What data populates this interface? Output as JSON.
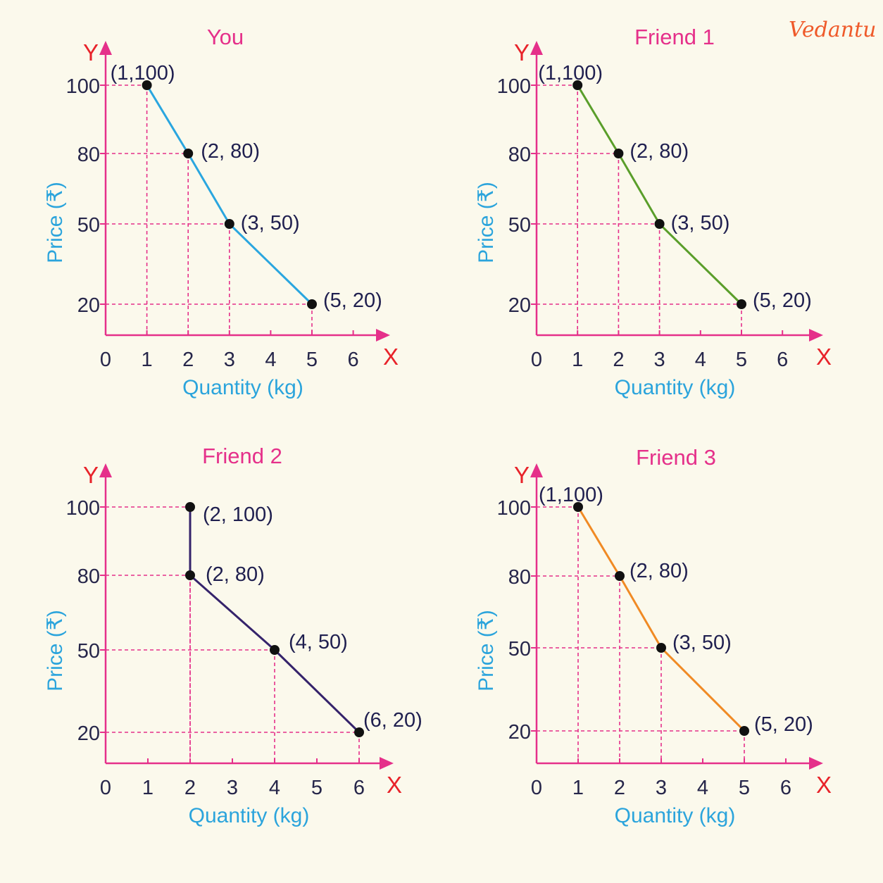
{
  "logo": "Vedantu",
  "chart_data": [
    {
      "type": "line",
      "title": "You",
      "xlabel": "Quantity (kg)",
      "ylabel": "Price (₹)",
      "x_axis_letter": "X",
      "y_axis_letter": "Y",
      "xticks": [
        "0",
        "1",
        "2",
        "3",
        "4",
        "5",
        "6"
      ],
      "yticks": [
        "20",
        "50",
        "80",
        "100"
      ],
      "line_color": "#2aa6df",
      "points": [
        {
          "x": 1,
          "y": 100,
          "label": "(1,100)"
        },
        {
          "x": 2,
          "y": 80,
          "label": "(2, 80)"
        },
        {
          "x": 3,
          "y": 50,
          "label": "(3, 50)"
        },
        {
          "x": 5,
          "y": 20,
          "label": "(5, 20)"
        }
      ]
    },
    {
      "type": "line",
      "title": "Friend 1",
      "xlabel": "Quantity (kg)",
      "ylabel": "Price (₹)",
      "x_axis_letter": "X",
      "y_axis_letter": "Y",
      "xticks": [
        "0",
        "1",
        "2",
        "3",
        "4",
        "5",
        "6"
      ],
      "yticks": [
        "20",
        "50",
        "80",
        "100"
      ],
      "line_color": "#5a9e2a",
      "points": [
        {
          "x": 1,
          "y": 100,
          "label": "(1,100)"
        },
        {
          "x": 2,
          "y": 80,
          "label": "(2, 80)"
        },
        {
          "x": 3,
          "y": 50,
          "label": "(3, 50)"
        },
        {
          "x": 5,
          "y": 20,
          "label": "(5, 20)"
        }
      ]
    },
    {
      "type": "line",
      "title": "Friend 2",
      "xlabel": "Quantity (kg)",
      "ylabel": "Price (₹)",
      "x_axis_letter": "X",
      "y_axis_letter": "Y",
      "xticks": [
        "0",
        "1",
        "2",
        "3",
        "4",
        "5",
        "6"
      ],
      "yticks": [
        "20",
        "50",
        "80",
        "100"
      ],
      "line_color": "#35236b",
      "points": [
        {
          "x": 2,
          "y": 100,
          "label": "(2, 100)"
        },
        {
          "x": 2,
          "y": 80,
          "label": "(2, 80)"
        },
        {
          "x": 4,
          "y": 50,
          "label": "(4, 50)"
        },
        {
          "x": 6,
          "y": 20,
          "label": "(6, 20)"
        }
      ]
    },
    {
      "type": "line",
      "title": "Friend 3",
      "xlabel": "Quantity (kg)",
      "ylabel": "Price (₹)",
      "x_axis_letter": "X",
      "y_axis_letter": "Y",
      "xticks": [
        "0",
        "1",
        "2",
        "3",
        "4",
        "5",
        "6"
      ],
      "yticks": [
        "20",
        "50",
        "80",
        "100"
      ],
      "line_color": "#f08a24",
      "points": [
        {
          "x": 1,
          "y": 100,
          "label": "(1,100)"
        },
        {
          "x": 2,
          "y": 80,
          "label": "(2, 80)"
        },
        {
          "x": 3,
          "y": 50,
          "label": "(3, 50)"
        },
        {
          "x": 5,
          "y": 20,
          "label": "(5, 20)"
        }
      ]
    }
  ]
}
